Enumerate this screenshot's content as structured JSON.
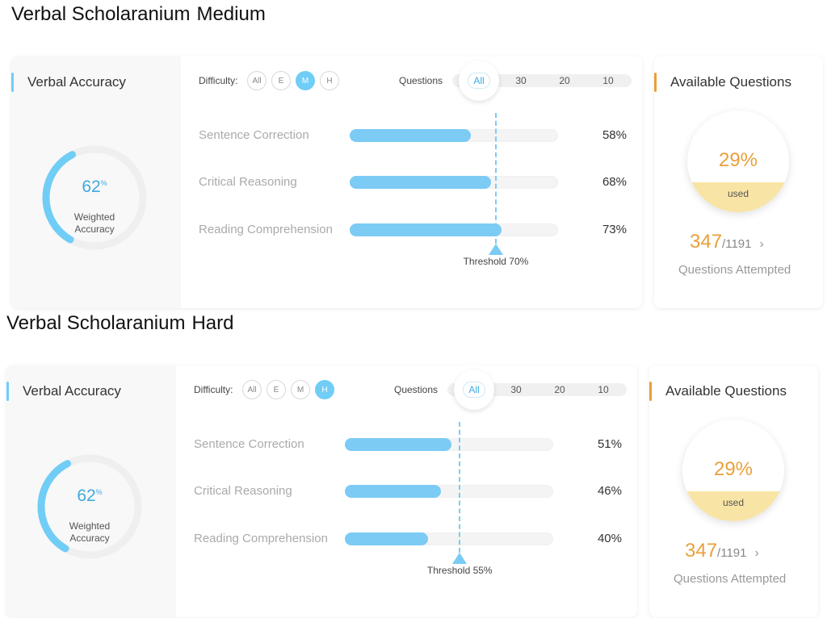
{
  "sections": [
    {
      "title": "Verbal Scholaranium",
      "difficulty_label": "Medium",
      "accuracy_card": {
        "title": "Verbal Accuracy",
        "gauge_value": "62",
        "gauge_unit": "%",
        "gauge_fraction": 0.62,
        "gauge_label_1": "Weighted",
        "gauge_label_2": "Accuracy"
      },
      "filters": {
        "difficulty_label": "Difficulty:",
        "difficulty_options": [
          "All",
          "E",
          "M",
          "H"
        ],
        "difficulty_selected": "M",
        "questions_label": "Questions",
        "question_options": [
          "All",
          "30",
          "20",
          "10"
        ],
        "question_selected": "All"
      },
      "rows": [
        {
          "label": "Sentence Correction",
          "value": 58,
          "pct": "58%"
        },
        {
          "label": "Critical Reasoning",
          "value": 68,
          "pct": "68%"
        },
        {
          "label": "Reading Comprehension",
          "value": 73,
          "pct": "73%"
        }
      ],
      "threshold": {
        "value": 70,
        "label": "Threshold 70%"
      },
      "available": {
        "title": "Available Questions",
        "used_pct": "29%",
        "used_fraction": 0.29,
        "used_label": "used",
        "attempted": "347",
        "total": "/1191",
        "chevron": "›",
        "attempted_label": "Questions Attempted"
      }
    },
    {
      "title": "Verbal Scholaranium",
      "difficulty_label": "Hard",
      "accuracy_card": {
        "title": "Verbal Accuracy",
        "gauge_value": "62",
        "gauge_unit": "%",
        "gauge_fraction": 0.62,
        "gauge_label_1": "Weighted",
        "gauge_label_2": "Accuracy"
      },
      "filters": {
        "difficulty_label": "Difficulty:",
        "difficulty_options": [
          "All",
          "E",
          "M",
          "H"
        ],
        "difficulty_selected": "H",
        "questions_label": "Questions",
        "question_options": [
          "All",
          "30",
          "20",
          "10"
        ],
        "question_selected": "All"
      },
      "rows": [
        {
          "label": "Sentence Correction",
          "value": 51,
          "pct": "51%"
        },
        {
          "label": "Critical Reasoning",
          "value": 46,
          "pct": "46%"
        },
        {
          "label": "Reading Comprehension",
          "value": 40,
          "pct": "40%"
        }
      ],
      "threshold": {
        "value": 55,
        "label": "Threshold 55%"
      },
      "available": {
        "title": "Available Questions",
        "used_pct": "29%",
        "used_fraction": 0.29,
        "used_label": "used",
        "attempted": "347",
        "total": "/1191",
        "chevron": "›",
        "attempted_label": "Questions Attempted"
      }
    }
  ],
  "colors": {
    "accent_blue": "#70cdf6",
    "accent_orange": "#e9a03b",
    "used_fill": "#f8e4a5"
  }
}
